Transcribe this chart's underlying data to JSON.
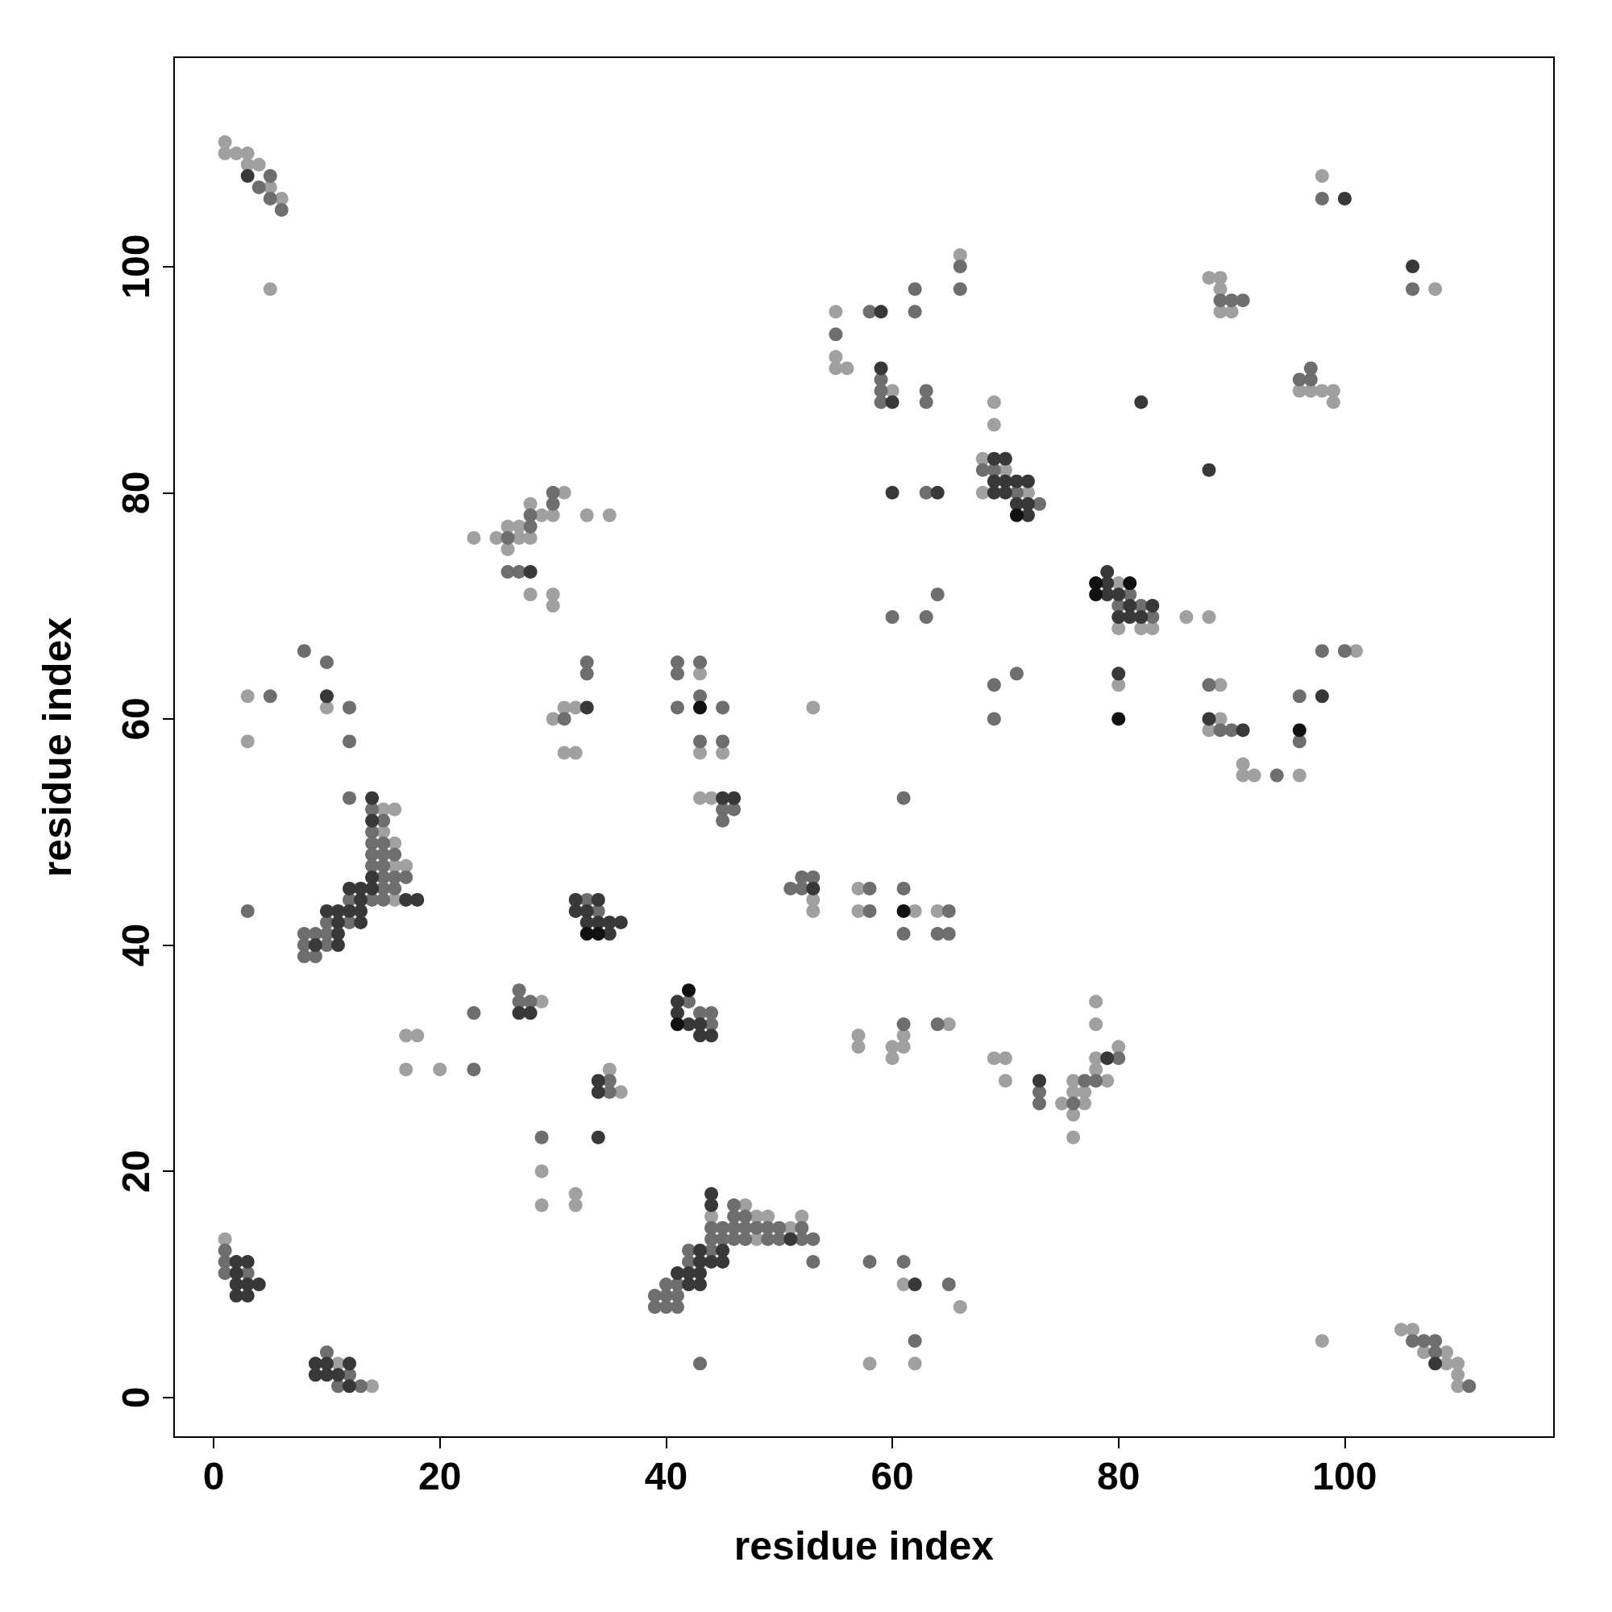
{
  "chart_data": {
    "type": "scatter",
    "xlabel": "residue index",
    "ylabel": "residue index",
    "xlim": [
      -3.5,
      118.5
    ],
    "ylim": [
      -3.5,
      118.5
    ],
    "xticks": [
      0,
      20,
      40,
      60,
      80,
      100
    ],
    "yticks": [
      0,
      20,
      40,
      60,
      80,
      100
    ],
    "grid": false,
    "marker": "circle",
    "series": [
      {
        "color": "#a0a0a0",
        "x": [
          1,
          1,
          2,
          3,
          3,
          4,
          5,
          6,
          5,
          105,
          106,
          107,
          109,
          109,
          110,
          110,
          110,
          98,
          1,
          11,
          14,
          3,
          3,
          10,
          15,
          15,
          16,
          16,
          16,
          16,
          17,
          17,
          18,
          17,
          20,
          23,
          25,
          26,
          26,
          27,
          27,
          28,
          28,
          29,
          30,
          31,
          33,
          35,
          28,
          30,
          30,
          29,
          29,
          29,
          32,
          32,
          30,
          31,
          32,
          31,
          32,
          35,
          36,
          43,
          43,
          45,
          43,
          44,
          44,
          47,
          48,
          48,
          49,
          51,
          52,
          53,
          53,
          53,
          55,
          55,
          55,
          56,
          60,
          66,
          57,
          57,
          62,
          64,
          57,
          57,
          60,
          60,
          61,
          61,
          65,
          61,
          66,
          62,
          58,
          68,
          68,
          70,
          72,
          69,
          69,
          69,
          70,
          70,
          75,
          76,
          76,
          76,
          76,
          77,
          77,
          78,
          78,
          78,
          78,
          79,
          80,
          80,
          80,
          82,
          83,
          86,
          88,
          80,
          88,
          89,
          89,
          89,
          90,
          89,
          89,
          88,
          91,
          91,
          92,
          96,
          101,
          96,
          97,
          98,
          99,
          99,
          98,
          108
        ],
        "values": [
          111,
          110,
          110,
          110,
          109,
          109,
          107,
          106,
          98,
          6,
          6,
          4,
          4,
          3,
          3,
          2,
          1,
          5,
          14,
          3,
          1,
          62,
          58,
          61,
          52,
          50,
          52,
          49,
          47,
          44,
          47,
          32,
          32,
          29,
          29,
          76,
          76,
          77,
          75,
          77,
          76,
          76,
          79,
          78,
          78,
          80,
          78,
          78,
          71,
          71,
          70,
          35,
          20,
          17,
          18,
          17,
          60,
          61,
          61,
          57,
          57,
          29,
          27,
          64,
          57,
          57,
          53,
          53,
          16,
          17,
          16,
          14,
          16,
          15,
          16,
          44,
          43,
          61,
          96,
          92,
          91,
          91,
          89,
          101,
          45,
          43,
          43,
          43,
          32,
          31,
          31,
          30,
          32,
          31,
          33,
          10,
          8,
          3,
          3,
          83,
          80,
          82,
          80,
          88,
          86,
          30,
          30,
          28,
          26,
          28,
          27,
          25,
          23,
          27,
          26,
          30,
          29,
          35,
          33,
          28,
          31,
          72,
          68,
          68,
          68,
          69,
          69,
          63,
          99,
          99,
          98,
          96,
          96,
          63,
          60,
          59,
          56,
          55,
          55,
          55,
          66,
          89,
          89,
          89,
          89,
          88,
          108,
          98
        ]
      },
      {
        "color": "#6e6e6e",
        "x": [
          4,
          5,
          5,
          6,
          106,
          107,
          108,
          108,
          111,
          1,
          1,
          1,
          3,
          10,
          11,
          12,
          13,
          5,
          3,
          8,
          10,
          12,
          12,
          12,
          8,
          8,
          8,
          9,
          9,
          10,
          10,
          10,
          12,
          12,
          14,
          14,
          14,
          14,
          14,
          14,
          15,
          15,
          15,
          15,
          15,
          15,
          15,
          16,
          16,
          16,
          17,
          23,
          23,
          26,
          28,
          28,
          30,
          30,
          26,
          27,
          27,
          27,
          28,
          29,
          31,
          33,
          33,
          33,
          34,
          35,
          35,
          41,
          41,
          41,
          43,
          43,
          45,
          43,
          45,
          45,
          46,
          45,
          42,
          43,
          44,
          44,
          39,
          39,
          40,
          40,
          40,
          41,
          41,
          41,
          42,
          42,
          44,
          44,
          44,
          45,
          45,
          46,
          46,
          46,
          46,
          47,
          47,
          47,
          48,
          49,
          49,
          50,
          50,
          52,
          52,
          53,
          53,
          43,
          51,
          52,
          52,
          53,
          55,
          58,
          59,
          59,
          59,
          62,
          62,
          63,
          63,
          66,
          66,
          63,
          60,
          63,
          64,
          61,
          58,
          58,
          61,
          65,
          61,
          64,
          65,
          61,
          64,
          58,
          61,
          65,
          62,
          68,
          69,
          71,
          73,
          69,
          69,
          71,
          73,
          73,
          76,
          77,
          78,
          80,
          80,
          81,
          82,
          83,
          89,
          90,
          91,
          88,
          89,
          90,
          94,
          96,
          96,
          98,
          100,
          96,
          97,
          97,
          98,
          106
        ],
        "values": [
          107,
          108,
          106,
          105,
          5,
          5,
          5,
          4,
          1,
          13,
          12,
          11,
          11,
          4,
          1,
          2,
          1,
          62,
          43,
          66,
          65,
          61,
          58,
          53,
          41,
          40,
          39,
          41,
          39,
          42,
          41,
          40,
          44,
          42,
          52,
          50,
          49,
          48,
          47,
          44,
          51,
          49,
          48,
          47,
          46,
          45,
          44,
          48,
          46,
          45,
          46,
          34,
          29,
          76,
          77,
          78,
          80,
          79,
          73,
          73,
          36,
          35,
          35,
          23,
          60,
          65,
          64,
          44,
          43,
          28,
          27,
          65,
          64,
          61,
          65,
          62,
          61,
          58,
          58,
          52,
          52,
          51,
          35,
          34,
          34,
          33,
          9,
          8,
          10,
          9,
          8,
          10,
          9,
          8,
          12,
          13,
          15,
          14,
          13,
          15,
          14,
          17,
          16,
          15,
          14,
          16,
          15,
          14,
          15,
          15,
          14,
          15,
          14,
          15,
          14,
          14,
          12,
          3,
          45,
          46,
          45,
          46,
          94,
          96,
          90,
          89,
          88,
          98,
          96,
          89,
          88,
          100,
          98,
          80,
          69,
          69,
          71,
          53,
          45,
          43,
          45,
          43,
          41,
          41,
          41,
          33,
          33,
          12,
          12,
          10,
          5,
          82,
          82,
          80,
          79,
          63,
          60,
          64,
          27,
          26,
          26,
          28,
          28,
          30,
          70,
          71,
          70,
          69,
          97,
          97,
          97,
          63,
          59,
          59,
          55,
          62,
          58,
          66,
          66,
          90,
          91,
          90,
          106,
          98
        ]
      },
      {
        "color": "#383838",
        "x": [
          3,
          108,
          2,
          2,
          2,
          2,
          3,
          3,
          3,
          4,
          9,
          9,
          10,
          10,
          11,
          12,
          12,
          10,
          9,
          10,
          11,
          11,
          11,
          11,
          12,
          12,
          13,
          13,
          13,
          13,
          14,
          14,
          14,
          14,
          17,
          18,
          28,
          27,
          28,
          34,
          33,
          32,
          32,
          33,
          33,
          34,
          34,
          35,
          35,
          36,
          34,
          34,
          45,
          46,
          41,
          41,
          42,
          43,
          43,
          44,
          41,
          42,
          42,
          43,
          43,
          43,
          43,
          44,
          44,
          44,
          45,
          45,
          51,
          53,
          59,
          59,
          60,
          60,
          64,
          62,
          69,
          69,
          69,
          70,
          70,
          70,
          71,
          71,
          72,
          72,
          72,
          73,
          79,
          79,
          79,
          79,
          80,
          80,
          81,
          81,
          82,
          83,
          80,
          82,
          88,
          88,
          91,
          98,
          100,
          106
        ],
        "values": [
          108,
          3,
          12,
          11,
          10,
          9,
          12,
          10,
          9,
          10,
          3,
          2,
          3,
          2,
          2,
          3,
          1,
          62,
          40,
          43,
          43,
          42,
          41,
          40,
          45,
          43,
          45,
          44,
          43,
          42,
          53,
          51,
          46,
          45,
          44,
          44,
          73,
          34,
          34,
          23,
          61,
          44,
          43,
          43,
          42,
          44,
          42,
          42,
          41,
          42,
          28,
          27,
          53,
          53,
          35,
          34,
          33,
          33,
          32,
          32,
          11,
          11,
          10,
          13,
          12,
          11,
          10,
          18,
          17,
          12,
          13,
          12,
          14,
          45,
          96,
          91,
          88,
          80,
          80,
          10,
          83,
          81,
          80,
          83,
          81,
          80,
          81,
          79,
          81,
          79,
          78,
          28,
          30,
          73,
          72,
          71,
          71,
          69,
          70,
          69,
          69,
          70,
          64,
          88,
          82,
          60,
          59,
          62,
          106,
          100
        ]
      },
      {
        "color": "#111111",
        "x": [
          33,
          34,
          43,
          41,
          42,
          61,
          71,
          78,
          78,
          81,
          80,
          96
        ],
        "values": [
          41,
          41,
          61,
          33,
          36,
          43,
          78,
          72,
          71,
          72,
          60,
          59
        ]
      }
    ]
  }
}
